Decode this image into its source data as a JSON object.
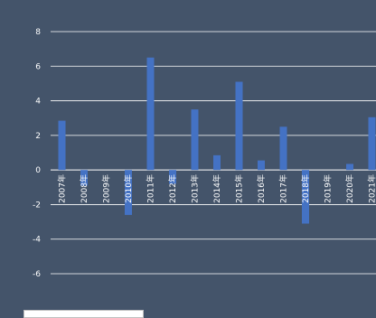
{
  "chart_data": {
    "type": "bar",
    "categories": [
      "2007年",
      "2008年",
      "2009年",
      "2010年",
      "2011年",
      "2012年",
      "2013年",
      "2014年",
      "2015年",
      "2016年",
      "2017年",
      "2018年",
      "2019年",
      "2020年",
      "2021年"
    ],
    "values": [
      2.85,
      -0.9,
      0,
      -2.6,
      6.5,
      -0.8,
      3.5,
      0.85,
      5.1,
      0.55,
      2.5,
      -3.1,
      0,
      0.35,
      3.05
    ],
    "title": "",
    "xlabel": "",
    "ylabel": "",
    "ylim": [
      -6,
      8
    ],
    "yticks": [
      8,
      6,
      4,
      2,
      0,
      -2,
      -4,
      -6
    ],
    "grid": true,
    "bar_color": "#4472c4",
    "grid_color": "#ffffff",
    "background": "#44546a"
  }
}
